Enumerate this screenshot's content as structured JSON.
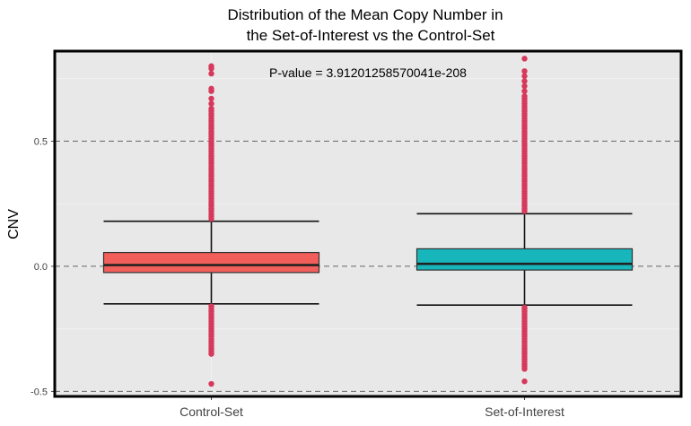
{
  "chart_data": {
    "type": "boxplot",
    "title_line1": "Distribution of the Mean Copy Number in",
    "title_line2": "the Set-of-Interest vs the Control-Set",
    "ylabel": "CNV",
    "xlabel": "",
    "annotation": "P-value = 3.91201258570041e-208",
    "ylim": [
      -0.52,
      0.86
    ],
    "yticks": [
      -0.5,
      0.0,
      0.5
    ],
    "ytick_labels": [
      "-0.5",
      "0.0",
      "0.5"
    ],
    "grid": true,
    "reference_lines": [
      -0.5,
      0.0,
      0.5
    ],
    "categories": [
      "Control-Set",
      "Set-of-Interest"
    ],
    "boxes": [
      {
        "category": "Control-Set",
        "color": "#F25E5A",
        "whisker_low": -0.15,
        "q1": -0.025,
        "median": 0.005,
        "q3": 0.055,
        "whisker_high": 0.18,
        "outliers_high": [
          0.19,
          0.2,
          0.21,
          0.22,
          0.23,
          0.24,
          0.25,
          0.26,
          0.27,
          0.28,
          0.29,
          0.3,
          0.31,
          0.32,
          0.33,
          0.34,
          0.35,
          0.36,
          0.37,
          0.38,
          0.39,
          0.4,
          0.41,
          0.42,
          0.43,
          0.44,
          0.45,
          0.46,
          0.47,
          0.48,
          0.49,
          0.5,
          0.51,
          0.52,
          0.53,
          0.54,
          0.55,
          0.56,
          0.57,
          0.58,
          0.59,
          0.6,
          0.61,
          0.62,
          0.63,
          0.65,
          0.67,
          0.7,
          0.71,
          0.77,
          0.79,
          0.8
        ],
        "outliers_low": [
          -0.16,
          -0.17,
          -0.18,
          -0.19,
          -0.2,
          -0.21,
          -0.22,
          -0.23,
          -0.24,
          -0.25,
          -0.26,
          -0.27,
          -0.28,
          -0.29,
          -0.3,
          -0.31,
          -0.32,
          -0.33,
          -0.34,
          -0.35,
          -0.47
        ]
      },
      {
        "category": "Set-of-Interest",
        "color": "#17B6BB",
        "whisker_low": -0.155,
        "q1": -0.015,
        "median": 0.01,
        "q3": 0.07,
        "whisker_high": 0.21,
        "outliers_high": [
          0.22,
          0.23,
          0.24,
          0.25,
          0.26,
          0.27,
          0.28,
          0.29,
          0.3,
          0.31,
          0.32,
          0.33,
          0.34,
          0.35,
          0.36,
          0.37,
          0.38,
          0.39,
          0.4,
          0.41,
          0.42,
          0.43,
          0.44,
          0.45,
          0.46,
          0.47,
          0.48,
          0.49,
          0.5,
          0.51,
          0.52,
          0.53,
          0.54,
          0.55,
          0.56,
          0.57,
          0.58,
          0.59,
          0.6,
          0.61,
          0.62,
          0.63,
          0.64,
          0.65,
          0.66,
          0.67,
          0.68,
          0.7,
          0.72,
          0.74,
          0.76,
          0.78,
          0.83
        ],
        "outliers_low": [
          -0.165,
          -0.17,
          -0.18,
          -0.19,
          -0.2,
          -0.21,
          -0.22,
          -0.23,
          -0.24,
          -0.25,
          -0.26,
          -0.27,
          -0.28,
          -0.29,
          -0.3,
          -0.31,
          -0.32,
          -0.33,
          -0.34,
          -0.35,
          -0.36,
          -0.37,
          -0.38,
          -0.39,
          -0.4,
          -0.41,
          -0.46
        ]
      }
    ],
    "outlier_color": "#D6395B",
    "panel_color": "#E8E8E8"
  }
}
